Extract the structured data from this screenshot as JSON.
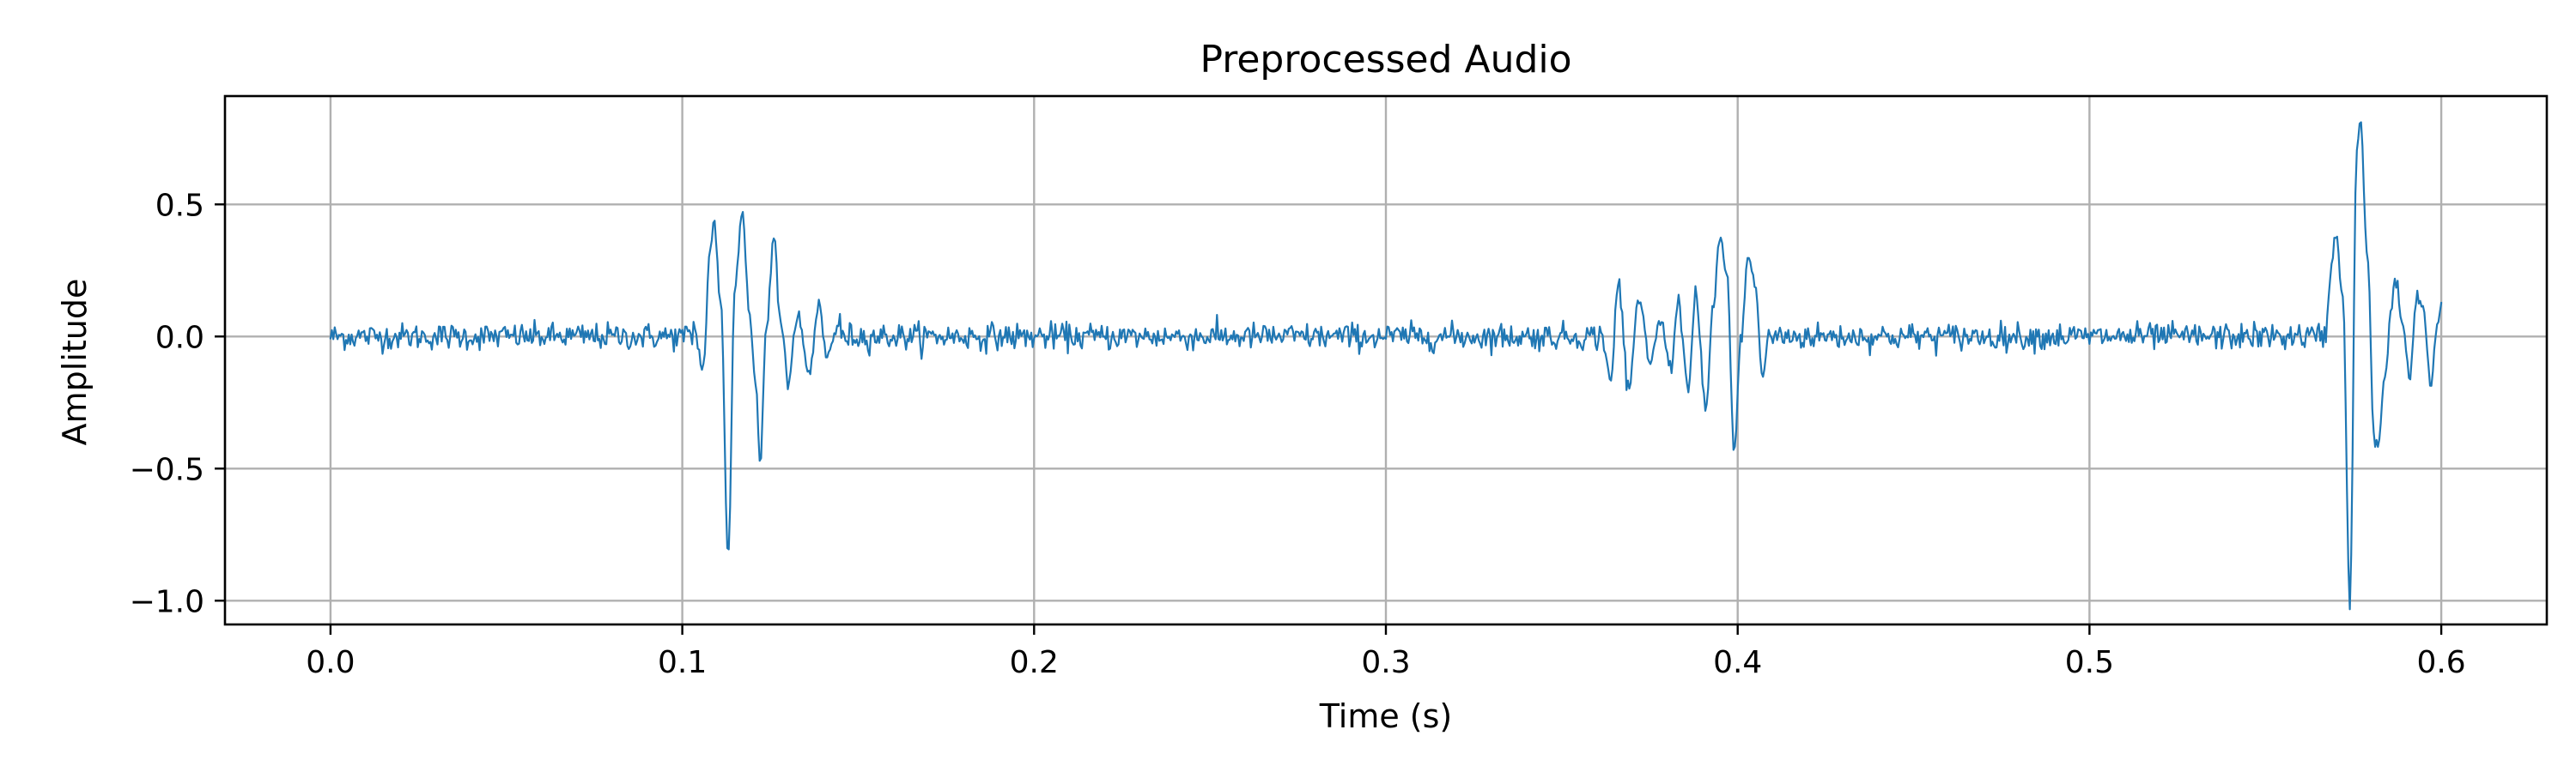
{
  "colors": {
    "series": "#1f77b4",
    "grid": "#b0b0b0"
  },
  "chart_data": {
    "type": "line",
    "title": "Preprocessed Audio",
    "xlabel": "Time (s)",
    "ylabel": "Amplitude",
    "xlim": [
      -0.03,
      0.63
    ],
    "ylim": [
      -1.09,
      0.91
    ],
    "grid": true,
    "xticks": [
      {
        "value": 0.0,
        "label": "0.0"
      },
      {
        "value": 0.1,
        "label": "0.1"
      },
      {
        "value": 0.2,
        "label": "0.2"
      },
      {
        "value": 0.3,
        "label": "0.3"
      },
      {
        "value": 0.4,
        "label": "0.4"
      },
      {
        "value": 0.5,
        "label": "0.5"
      },
      {
        "value": 0.6,
        "label": "0.6"
      }
    ],
    "yticks": [
      {
        "value": 0.5,
        "label": "0.5"
      },
      {
        "value": 0.0,
        "label": "0.0"
      },
      {
        "value": -0.5,
        "label": "−0.5"
      },
      {
        "value": -1.0,
        "label": "−1.0"
      }
    ],
    "series": [
      {
        "x_start": 0.0,
        "x_end": 0.6,
        "baseline_noise": 0.025,
        "events": [
          {
            "t": 0.103,
            "y": 0.06
          },
          {
            "t": 0.106,
            "y": -0.12
          },
          {
            "t": 0.108,
            "y": 0.35
          },
          {
            "t": 0.109,
            "y": 0.44
          },
          {
            "t": 0.111,
            "y": 0.12
          },
          {
            "t": 0.113,
            "y": -0.84
          },
          {
            "t": 0.115,
            "y": 0.2
          },
          {
            "t": 0.117,
            "y": 0.48
          },
          {
            "t": 0.119,
            "y": 0.1
          },
          {
            "t": 0.121,
            "y": -0.2
          },
          {
            "t": 0.122,
            "y": -0.48
          },
          {
            "t": 0.124,
            "y": 0.05
          },
          {
            "t": 0.126,
            "y": 0.39
          },
          {
            "t": 0.128,
            "y": 0.05
          },
          {
            "t": 0.13,
            "y": -0.17
          },
          {
            "t": 0.133,
            "y": 0.08
          },
          {
            "t": 0.136,
            "y": -0.14
          },
          {
            "t": 0.139,
            "y": 0.13
          },
          {
            "t": 0.141,
            "y": -0.08
          },
          {
            "t": 0.145,
            "y": 0.06
          },
          {
            "t": 0.361,
            "y": 0.01
          },
          {
            "t": 0.364,
            "y": -0.16
          },
          {
            "t": 0.366,
            "y": 0.21
          },
          {
            "t": 0.369,
            "y": -0.18
          },
          {
            "t": 0.372,
            "y": 0.15
          },
          {
            "t": 0.375,
            "y": -0.11
          },
          {
            "t": 0.378,
            "y": 0.06
          },
          {
            "t": 0.381,
            "y": -0.12
          },
          {
            "t": 0.383,
            "y": 0.14
          },
          {
            "t": 0.386,
            "y": -0.2
          },
          {
            "t": 0.388,
            "y": 0.16
          },
          {
            "t": 0.391,
            "y": -0.27
          },
          {
            "t": 0.393,
            "y": 0.1
          },
          {
            "t": 0.395,
            "y": 0.37
          },
          {
            "t": 0.397,
            "y": 0.22
          },
          {
            "t": 0.399,
            "y": -0.44
          },
          {
            "t": 0.401,
            "y": 0.0
          },
          {
            "t": 0.403,
            "y": 0.3
          },
          {
            "t": 0.405,
            "y": 0.2
          },
          {
            "t": 0.407,
            "y": -0.16
          },
          {
            "t": 0.409,
            "y": 0.03
          },
          {
            "t": 0.567,
            "y": 0.0
          },
          {
            "t": 0.569,
            "y": 0.3
          },
          {
            "t": 0.57,
            "y": 0.38
          },
          {
            "t": 0.572,
            "y": 0.15
          },
          {
            "t": 0.574,
            "y": -1.0
          },
          {
            "t": 0.576,
            "y": 0.7
          },
          {
            "t": 0.577,
            "y": 0.82
          },
          {
            "t": 0.579,
            "y": 0.3
          },
          {
            "t": 0.581,
            "y": -0.4
          },
          {
            "t": 0.582,
            "y": -0.41
          },
          {
            "t": 0.584,
            "y": -0.15
          },
          {
            "t": 0.586,
            "y": 0.14
          },
          {
            "t": 0.587,
            "y": 0.22
          },
          {
            "t": 0.589,
            "y": 0.05
          },
          {
            "t": 0.591,
            "y": -0.15
          },
          {
            "t": 0.593,
            "y": 0.14
          },
          {
            "t": 0.595,
            "y": 0.1
          },
          {
            "t": 0.597,
            "y": -0.18
          },
          {
            "t": 0.599,
            "y": 0.05
          },
          {
            "t": 0.6,
            "y": 0.13
          }
        ]
      }
    ]
  }
}
